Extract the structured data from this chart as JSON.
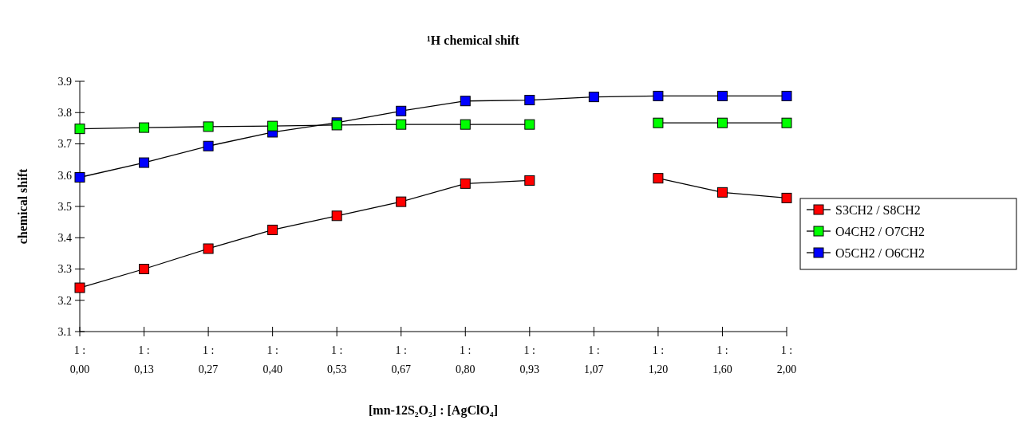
{
  "chart_data": {
    "type": "line",
    "title": "¹H chemical shift",
    "xlabel": "[mn-12S₂O₂] : [AgClO₄]",
    "ylabel": "chemical shift",
    "categories": [
      "1 : 0,00",
      "1 : 0,13",
      "1 : 0,27",
      "1 : 0,40",
      "1 : 0,53",
      "1 : 0,67",
      "1 : 0,80",
      "1 : 0,93",
      "1 : 1,07",
      "1 : 1,20",
      "1 : 1,60",
      "1 : 2,00"
    ],
    "series": [
      {
        "name": "S3CH2 / S8CH2",
        "color": "#ff0000",
        "values": [
          3.24,
          3.3,
          3.365,
          3.425,
          3.47,
          3.515,
          3.573,
          3.583,
          null,
          3.59,
          3.545,
          3.527
        ]
      },
      {
        "name": "O4CH2 / O7CH2",
        "color": "#00ff00",
        "values": [
          3.748,
          3.752,
          3.755,
          3.757,
          3.76,
          3.762,
          3.762,
          3.762,
          null,
          3.767,
          3.767,
          3.767
        ]
      },
      {
        "name": "O5CH2 / O6CH2",
        "color": "#0000ff",
        "values": [
          3.593,
          3.64,
          3.693,
          3.737,
          3.768,
          3.805,
          3.837,
          3.84,
          3.85,
          3.853,
          3.853,
          3.853
        ]
      }
    ],
    "ylim": [
      3.1,
      3.9
    ],
    "yticks": [
      3.1,
      3.2,
      3.3,
      3.4,
      3.5,
      3.6,
      3.7,
      3.8,
      3.9
    ],
    "grid": false,
    "legend": "right",
    "marker": "square",
    "line_style": "solid"
  }
}
